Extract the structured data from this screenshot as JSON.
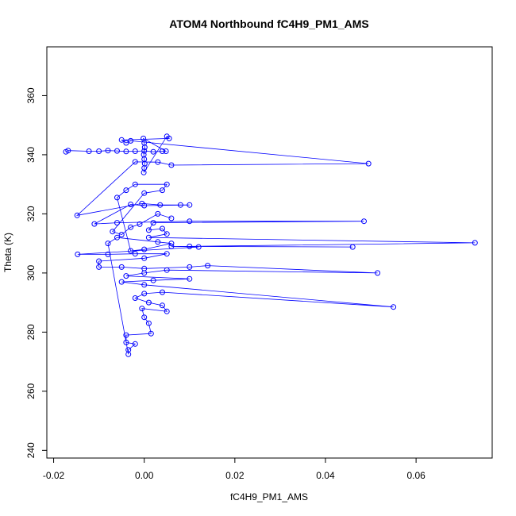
{
  "chart_data": {
    "type": "scatter",
    "title": "ATOM4 Northbound fC4H9_PM1_AMS",
    "xlabel": "fC4H9_PM1_AMS",
    "ylabel": "Theta (K)",
    "xlim": [
      -0.0215,
      0.0768
    ],
    "ylim": [
      237.4,
      376.5
    ],
    "xticks": [
      -0.02,
      0.0,
      0.02,
      0.04,
      0.06
    ],
    "xtick_labels": [
      "-0.02",
      "0.00",
      "0.02",
      "0.04",
      "0.06"
    ],
    "yticks": [
      240,
      260,
      280,
      300,
      320,
      340,
      360
    ],
    "ytick_labels": [
      "240",
      "260",
      "280",
      "300",
      "320",
      "340",
      "360"
    ],
    "series_color": "#0000ff",
    "marker": "open-circle",
    "connected": true,
    "series": [
      {
        "name": "fC4H9_PM1_AMS vs Theta",
        "points": [
          [
            -0.0173,
            341.0
          ],
          [
            -0.0168,
            341.4
          ],
          [
            -0.0122,
            341.2
          ],
          [
            -0.01,
            341.2
          ],
          [
            -0.008,
            341.4
          ],
          [
            -0.006,
            341.3
          ],
          [
            -0.004,
            341.1
          ],
          [
            -0.002,
            341.2
          ],
          [
            0.0,
            341.3
          ],
          [
            0.002,
            341.0
          ],
          [
            0.004,
            341.2
          ],
          [
            0.0048,
            341.2
          ],
          [
            -0.0002,
            345.5
          ],
          [
            0.0,
            344.0
          ],
          [
            0.0001,
            342.5
          ],
          [
            -0.0001,
            340.0
          ],
          [
            0.0,
            338.5
          ],
          [
            0.0001,
            337.0
          ],
          [
            0.0,
            335.5
          ],
          [
            -0.0001,
            334.0
          ],
          [
            0.005,
            346.2
          ],
          [
            0.0055,
            345.5
          ],
          [
            -0.005,
            345.0
          ],
          [
            -0.004,
            344.0
          ],
          [
            -0.003,
            344.7
          ],
          [
            0.0495,
            337.0
          ],
          [
            0.006,
            336.5
          ],
          [
            0.003,
            337.5
          ],
          [
            -0.002,
            337.6
          ],
          [
            -0.0148,
            319.5
          ],
          [
            -0.0005,
            323.5
          ],
          [
            0.0035,
            323.0
          ],
          [
            0.008,
            323.0
          ],
          [
            0.01,
            323.0
          ],
          [
            0.0,
            322.8
          ],
          [
            -0.003,
            323.2
          ],
          [
            -0.011,
            316.6
          ],
          [
            -0.006,
            317.0
          ],
          [
            0.01,
            317.5
          ],
          [
            0.0485,
            317.5
          ],
          [
            0.002,
            317.0
          ],
          [
            0.001,
            314.5
          ],
          [
            0.004,
            315.0
          ],
          [
            0.005,
            313.2
          ],
          [
            0.001,
            312.0
          ],
          [
            0.073,
            310.2
          ],
          [
            0.01,
            309.0
          ],
          [
            0.046,
            308.8
          ],
          [
            0.006,
            309.0
          ],
          [
            0.012,
            308.8
          ],
          [
            -0.0147,
            306.3
          ],
          [
            -0.008,
            306.3
          ],
          [
            -0.002,
            306.5
          ],
          [
            0.005,
            306.5
          ],
          [
            0.0,
            305.0
          ],
          [
            -0.01,
            304.0
          ],
          [
            -0.01,
            302.0
          ],
          [
            -0.005,
            302.0
          ],
          [
            0.0,
            301.5
          ],
          [
            0.01,
            302.0
          ],
          [
            0.014,
            302.5
          ],
          [
            0.0515,
            300.0
          ],
          [
            0.005,
            301.0
          ],
          [
            0.0,
            300.0
          ],
          [
            -0.004,
            299.0
          ],
          [
            0.01,
            298.0
          ],
          [
            0.002,
            297.5
          ],
          [
            -0.005,
            297.0
          ],
          [
            0.0,
            296.0
          ],
          [
            0.055,
            288.5
          ],
          [
            0.004,
            293.5
          ],
          [
            0.0,
            293.0
          ],
          [
            -0.002,
            291.5
          ],
          [
            0.001,
            290.0
          ],
          [
            0.004,
            289.0
          ],
          [
            0.005,
            287.0
          ],
          [
            -0.0005,
            288.0
          ],
          [
            0.0,
            285.0
          ],
          [
            0.001,
            283.0
          ],
          [
            0.0015,
            279.5
          ],
          [
            -0.004,
            279.0
          ],
          [
            -0.004,
            276.5
          ],
          [
            -0.002,
            276.0
          ],
          [
            -0.0035,
            274.0
          ],
          [
            -0.0035,
            272.5
          ],
          [
            -0.008,
            310.0
          ],
          [
            -0.006,
            312.0
          ],
          [
            0.003,
            310.5
          ],
          [
            0.006,
            310.0
          ],
          [
            0.0,
            308.0
          ],
          [
            -0.003,
            307.5
          ],
          [
            -0.006,
            325.5
          ],
          [
            -0.004,
            328.0
          ],
          [
            -0.002,
            330.0
          ],
          [
            0.005,
            330.0
          ],
          [
            0.004,
            328.0
          ],
          [
            0.0,
            327.0
          ],
          [
            -0.007,
            314.0
          ],
          [
            -0.005,
            313.0
          ],
          [
            -0.003,
            315.5
          ],
          [
            -0.001,
            316.5
          ],
          [
            0.003,
            320.0
          ],
          [
            0.006,
            318.5
          ]
        ]
      }
    ]
  }
}
